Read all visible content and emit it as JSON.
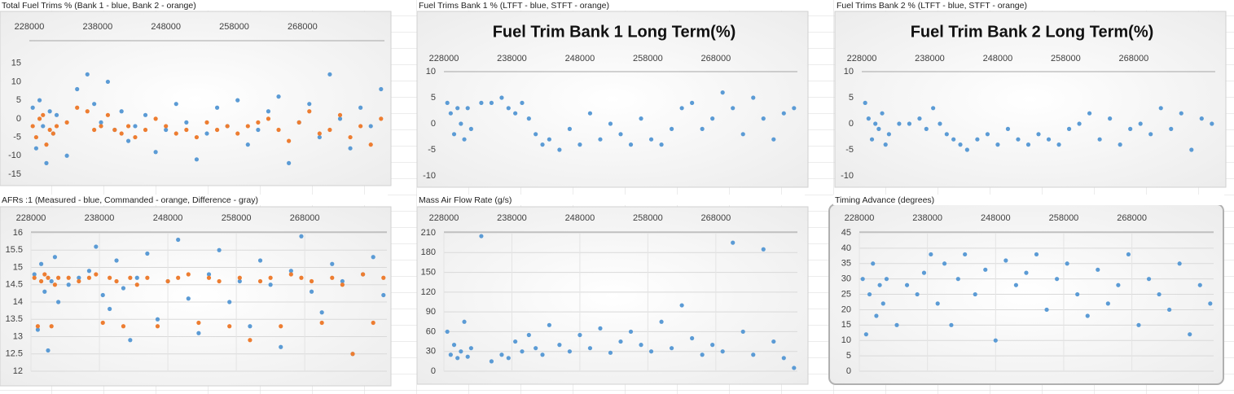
{
  "chart_data": [
    {
      "type": "scatter",
      "caption": "Total Fuel Trims % (Bank 1 - blue, Bank 2 - orange)",
      "x": [
        228500,
        229000,
        229500,
        230000,
        230500,
        231000,
        231500,
        232000,
        233500,
        235000,
        236500,
        237500,
        238500,
        239500,
        240500,
        241500,
        242500,
        243500,
        245000,
        246500,
        248000,
        249500,
        251000,
        252500,
        254000,
        255500,
        257000,
        258500,
        260000,
        261500,
        263000,
        264500,
        266000,
        267500,
        269000,
        270500,
        272000,
        273500,
        275000,
        276500,
        278000,
        279500
      ],
      "series": [
        {
          "color": "#5b9bd5",
          "values": [
            3,
            -8,
            5,
            -2,
            -12,
            2,
            -4,
            1,
            -10,
            8,
            12,
            4,
            -1,
            10,
            -3,
            2,
            -6,
            -2,
            1,
            -9,
            -3,
            4,
            -1,
            -11,
            -4,
            3,
            -2,
            5,
            -7,
            -3,
            2,
            6,
            -12,
            -1,
            4,
            -5,
            12,
            0,
            -8,
            3,
            -2,
            8
          ]
        },
        {
          "color": "#ed7d31",
          "values": [
            -2,
            -5,
            0,
            1,
            -7,
            -3,
            -4,
            -2,
            -1,
            3,
            2,
            -3,
            -2,
            1,
            -3,
            -4,
            -2,
            -5,
            -3,
            0,
            -2,
            -4,
            -3,
            -5,
            -1,
            -3,
            -2,
            -4,
            -2,
            -1,
            0,
            -3,
            -6,
            -1,
            2,
            -4,
            -3,
            1,
            -5,
            -2,
            -7,
            0
          ]
        }
      ],
      "xlim": [
        228000,
        280000
      ],
      "xticks": [
        228000,
        238000,
        248000,
        258000,
        268000
      ],
      "ylim": [
        -15,
        20
      ],
      "yticks": [
        -15,
        -10,
        -5,
        0,
        5,
        10,
        15
      ],
      "grid": false
    },
    {
      "type": "scatter",
      "caption": "Fuel Trims Bank 1 % (LTFT - blue, STFT - orange)",
      "title": "Fuel Trim Bank 1 Long Term(%)",
      "x": [
        228500,
        229000,
        229500,
        230000,
        230500,
        231000,
        231500,
        232000,
        233500,
        235000,
        236500,
        237500,
        238500,
        239500,
        240500,
        241500,
        242500,
        243500,
        245000,
        246500,
        248000,
        249500,
        251000,
        252500,
        254000,
        255500,
        257000,
        258500,
        260000,
        261500,
        263000,
        264500,
        266000,
        267500,
        269000,
        270500,
        272000,
        273500,
        275000,
        276500,
        278000,
        279500
      ],
      "series": [
        {
          "color": "#5b9bd5",
          "values": [
            4,
            2,
            -2,
            3,
            0,
            -3,
            3,
            -1,
            4,
            4,
            5,
            3,
            2,
            4,
            1,
            -2,
            -4,
            -3,
            -5,
            -1,
            -4,
            2,
            -3,
            0,
            -2,
            -4,
            1,
            -3,
            -4,
            -1,
            3,
            4,
            -1,
            1,
            6,
            3,
            -2,
            5,
            1,
            -3,
            2,
            3
          ]
        }
      ],
      "xlim": [
        228000,
        280000
      ],
      "xticks": [
        228000,
        238000,
        248000,
        258000,
        268000
      ],
      "ylim": [
        -10,
        10
      ],
      "yticks": [
        -10,
        -5,
        0,
        5,
        10
      ],
      "grid": false
    },
    {
      "type": "scatter",
      "caption": "Fuel Trims Bank 2 % (LTFT - blue, STFT - orange)",
      "title": "Fuel Trim Bank 2 Long Term(%)",
      "x": [
        228500,
        229000,
        229500,
        230000,
        230500,
        231000,
        231500,
        232000,
        233500,
        235000,
        236500,
        237500,
        238500,
        239500,
        240500,
        241500,
        242500,
        243500,
        245000,
        246500,
        248000,
        249500,
        251000,
        252500,
        254000,
        255500,
        257000,
        258500,
        260000,
        261500,
        263000,
        264500,
        266000,
        267500,
        269000,
        270500,
        272000,
        273500,
        275000,
        276500,
        278000,
        279500
      ],
      "series": [
        {
          "color": "#5b9bd5",
          "values": [
            4,
            1,
            -3,
            0,
            -1,
            2,
            -4,
            -2,
            0,
            0,
            1,
            -1,
            3,
            0,
            -2,
            -3,
            -4,
            -5,
            -3,
            -2,
            -4,
            -1,
            -3,
            -4,
            -2,
            -3,
            -4,
            -1,
            0,
            2,
            -3,
            1,
            -4,
            -1,
            0,
            -2,
            3,
            -1,
            2,
            -5,
            1,
            0
          ]
        }
      ],
      "xlim": [
        228000,
        280000
      ],
      "xticks": [
        228000,
        238000,
        248000,
        258000,
        268000
      ],
      "ylim": [
        -10,
        10
      ],
      "yticks": [
        -10,
        -5,
        0,
        5,
        10
      ],
      "grid": false
    },
    {
      "type": "scatter",
      "caption": "AFRs :1 (Measured - blue, Commanded - orange, Difference - gray)",
      "x": [
        228500,
        229000,
        229500,
        230000,
        230500,
        231000,
        231500,
        232000,
        233500,
        235000,
        236500,
        237500,
        238500,
        239500,
        240500,
        241500,
        242500,
        243500,
        245000,
        246500,
        248000,
        249500,
        251000,
        252500,
        254000,
        255500,
        257000,
        258500,
        260000,
        261500,
        263000,
        264500,
        266000,
        267500,
        269000,
        270500,
        272000,
        273500,
        275000,
        276500,
        278000,
        279500
      ],
      "series": [
        {
          "color": "#5b9bd5",
          "values": [
            14.8,
            13.2,
            15.1,
            14.3,
            12.6,
            14.6,
            15.3,
            14,
            14.5,
            14.7,
            14.9,
            15.6,
            14.2,
            13.8,
            15.2,
            14.4,
            12.9,
            14.7,
            15.4,
            13.5,
            14.6,
            15.8,
            14.1,
            13.1,
            14.8,
            15.5,
            14,
            14.6,
            13.3,
            15.2,
            14.5,
            12.7,
            14.9,
            15.9,
            14.3,
            13.7,
            15.1,
            14.6,
            12.5,
            14.8,
            15.3,
            14.2
          ]
        },
        {
          "color": "#ed7d31",
          "values": [
            14.7,
            13.3,
            14.6,
            14.8,
            14.7,
            13.3,
            14.5,
            14.7,
            14.7,
            14.6,
            14.7,
            14.8,
            13.4,
            14.7,
            14.6,
            13.3,
            14.7,
            14.5,
            14.7,
            13.3,
            14.6,
            14.7,
            14.8,
            13.4,
            14.7,
            14.6,
            13.3,
            14.7,
            12.9,
            14.6,
            14.7,
            13.3,
            14.8,
            14.7,
            14.6,
            13.4,
            14.7,
            14.5,
            12.5,
            14.8,
            13.4,
            14.7
          ]
        }
      ],
      "xlim": [
        228000,
        280000
      ],
      "xticks": [
        228000,
        238000,
        248000,
        258000,
        268000
      ],
      "ylim": [
        12,
        16
      ],
      "yticks": [
        12,
        12.5,
        13,
        13.5,
        14,
        14.5,
        15,
        15.5,
        16
      ],
      "grid": true
    },
    {
      "type": "scatter",
      "caption": "Mass Air Flow Rate (g/s)",
      "x": [
        228500,
        229000,
        229500,
        230000,
        230500,
        231000,
        231500,
        232000,
        233500,
        235000,
        236500,
        237500,
        238500,
        239500,
        240500,
        241500,
        242500,
        243500,
        245000,
        246500,
        248000,
        249500,
        251000,
        252500,
        254000,
        255500,
        257000,
        258500,
        260000,
        261500,
        263000,
        264500,
        266000,
        267500,
        269000,
        270500,
        272000,
        273500,
        275000,
        276500,
        278000,
        279500
      ],
      "series": [
        {
          "color": "#5b9bd5",
          "values": [
            60,
            25,
            40,
            20,
            30,
            75,
            22,
            35,
            205,
            15,
            25,
            20,
            45,
            30,
            55,
            35,
            25,
            70,
            40,
            30,
            55,
            35,
            65,
            28,
            45,
            60,
            40,
            30,
            75,
            35,
            100,
            50,
            25,
            40,
            30,
            195,
            60,
            25,
            185,
            45,
            20,
            5
          ]
        }
      ],
      "xlim": [
        228000,
        280000
      ],
      "xticks": [
        228000,
        238000,
        248000,
        258000,
        268000
      ],
      "ylim": [
        0,
        210
      ],
      "yticks": [
        0,
        30,
        60,
        90,
        120,
        150,
        180,
        210
      ],
      "grid": true
    },
    {
      "type": "scatter",
      "caption": "Timing Advance (degrees)",
      "x": [
        228500,
        229000,
        229500,
        230000,
        230500,
        231000,
        231500,
        232000,
        233500,
        235000,
        236500,
        237500,
        238500,
        239500,
        240500,
        241500,
        242500,
        243500,
        245000,
        246500,
        248000,
        249500,
        251000,
        252500,
        254000,
        255500,
        257000,
        258500,
        260000,
        261500,
        263000,
        264500,
        266000,
        267500,
        269000,
        270500,
        272000,
        273500,
        275000,
        276500,
        278000,
        279500
      ],
      "series": [
        {
          "color": "#5b9bd5",
          "values": [
            30,
            12,
            25,
            35,
            18,
            28,
            22,
            30,
            15,
            28,
            25,
            32,
            38,
            22,
            35,
            15,
            30,
            38,
            25,
            33,
            10,
            36,
            28,
            32,
            38,
            20,
            30,
            35,
            25,
            18,
            33,
            22,
            28,
            38,
            15,
            30,
            25,
            20,
            35,
            12,
            28,
            22
          ]
        }
      ],
      "xlim": [
        228000,
        280000
      ],
      "xticks": [
        228000,
        238000,
        248000,
        258000,
        268000
      ],
      "ylim": [
        0,
        45
      ],
      "yticks": [
        0,
        5,
        10,
        15,
        20,
        25,
        30,
        35,
        40,
        45
      ],
      "grid": true
    }
  ]
}
